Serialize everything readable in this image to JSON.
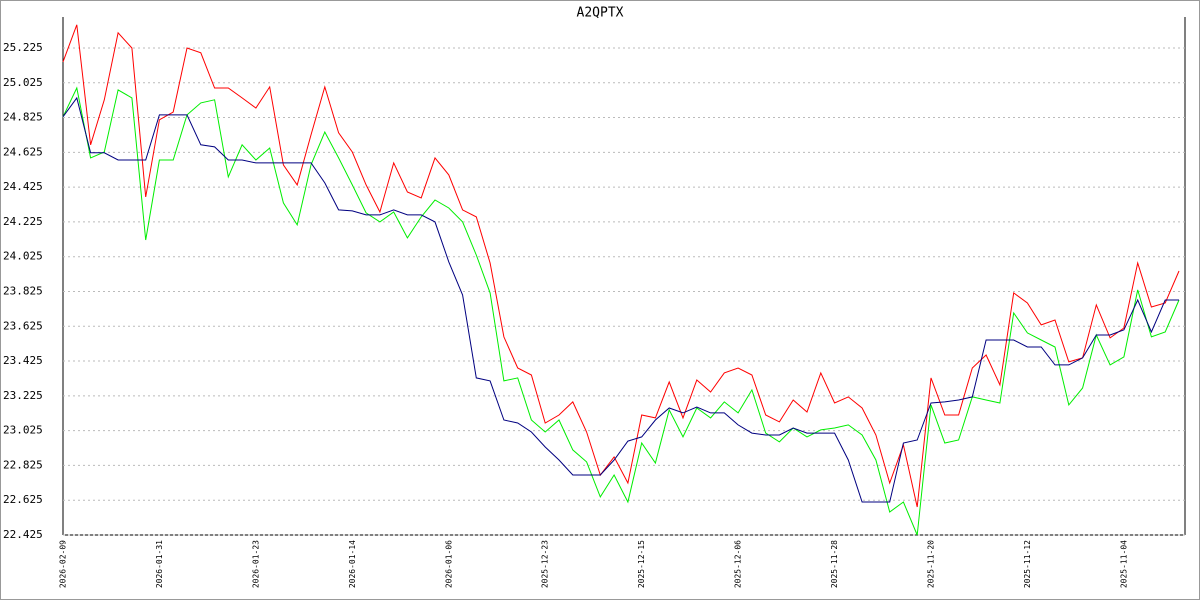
{
  "chart_data": {
    "type": "line",
    "title": "A2QPTX",
    "categories": [
      "2026-02-09",
      null,
      null,
      null,
      null,
      null,
      null,
      "2026-01-31",
      null,
      null,
      null,
      null,
      null,
      null,
      "2026-01-23",
      null,
      null,
      null,
      null,
      null,
      null,
      "2026-01-14",
      null,
      null,
      null,
      null,
      null,
      null,
      "2026-01-06",
      null,
      null,
      null,
      null,
      null,
      null,
      "2025-12-23",
      null,
      null,
      null,
      null,
      null,
      null,
      "2025-12-15",
      null,
      null,
      null,
      null,
      null,
      null,
      "2025-12-06",
      null,
      null,
      null,
      null,
      null,
      null,
      "2025-11-28",
      null,
      null,
      null,
      null,
      null,
      null,
      "2025-11-20",
      null,
      null,
      null,
      null,
      null,
      null,
      "2025-11-12",
      null,
      null,
      null,
      null,
      null,
      null,
      "2025-11-04",
      null,
      null,
      null,
      null
    ],
    "series": [
      {
        "color": "#ff0000",
        "values": [
          25.145,
          25.358,
          24.668,
          24.927,
          25.312,
          25.225,
          24.369,
          24.812,
          24.857,
          25.225,
          25.197,
          24.995,
          24.995,
          24.938,
          24.88,
          25.001,
          24.553,
          24.438,
          24.725,
          25.001,
          24.737,
          24.627,
          24.438,
          24.282,
          24.564,
          24.397,
          24.363,
          24.593,
          24.495,
          24.294,
          24.254,
          23.989,
          23.564,
          23.385,
          23.345,
          23.069,
          23.115,
          23.19,
          23.017,
          22.77,
          22.874,
          22.724,
          23.115,
          23.098,
          23.305,
          23.098,
          23.316,
          23.247,
          23.357,
          23.385,
          23.345,
          23.115,
          23.075,
          23.201,
          23.132,
          23.357,
          23.184,
          23.219,
          23.155,
          23.0,
          22.724,
          22.943,
          22.586,
          23.328,
          23.115,
          23.115,
          23.385,
          23.46,
          23.288,
          23.817,
          23.759,
          23.633,
          23.661,
          23.42,
          23.443,
          23.748,
          23.558,
          23.615,
          23.989,
          23.736,
          23.759,
          23.943
        ]
      },
      {
        "color": "#00ee00",
        "values": [
          24.829,
          24.995,
          24.593,
          24.627,
          24.984,
          24.938,
          24.121,
          24.581,
          24.581,
          24.84,
          24.909,
          24.927,
          24.484,
          24.668,
          24.581,
          24.65,
          24.334,
          24.208,
          24.553,
          24.742,
          24.593,
          24.438,
          24.277,
          24.225,
          24.282,
          24.133,
          24.254,
          24.351,
          24.305,
          24.225,
          24.035,
          23.817,
          23.311,
          23.328,
          23.086,
          23.017,
          23.086,
          22.914,
          22.845,
          22.644,
          22.77,
          22.615,
          22.954,
          22.839,
          23.144,
          22.989,
          23.155,
          23.098,
          23.19,
          23.127,
          23.259,
          23.011,
          22.96,
          23.04,
          22.989,
          23.029,
          23.04,
          23.058,
          23.0,
          22.856,
          22.557,
          22.615,
          22.425,
          23.173,
          22.954,
          22.971,
          23.219,
          23.201,
          23.184,
          23.702,
          23.587,
          23.546,
          23.506,
          23.173,
          23.27,
          23.575,
          23.403,
          23.449,
          23.834,
          23.564,
          23.592,
          23.776
        ]
      },
      {
        "color": "#000080",
        "values": [
          24.829,
          24.938,
          24.622,
          24.622,
          24.581,
          24.581,
          24.581,
          24.84,
          24.84,
          24.84,
          24.668,
          24.656,
          24.581,
          24.581,
          24.564,
          24.564,
          24.564,
          24.564,
          24.564,
          24.449,
          24.294,
          24.288,
          24.265,
          24.265,
          24.294,
          24.265,
          24.265,
          24.225,
          23.995,
          23.805,
          23.328,
          23.311,
          23.086,
          23.069,
          23.017,
          22.931,
          22.856,
          22.77,
          22.77,
          22.77,
          22.856,
          22.965,
          22.989,
          23.086,
          23.155,
          23.127,
          23.161,
          23.127,
          23.127,
          23.058,
          23.011,
          23.0,
          23.0,
          23.04,
          23.011,
          23.011,
          23.011,
          22.856,
          22.615,
          22.615,
          22.615,
          22.954,
          22.971,
          23.184,
          23.19,
          23.201,
          23.219,
          23.546,
          23.546,
          23.546,
          23.506,
          23.506,
          23.403,
          23.403,
          23.443,
          23.575,
          23.575,
          23.604,
          23.776,
          23.592,
          23.776,
          23.776
        ]
      }
    ],
    "ylim": [
      22.425,
      25.403
    ],
    "yticks": [
      22.425,
      22.625,
      22.825,
      23.025,
      23.225,
      23.425,
      23.625,
      23.825,
      24.025,
      24.225,
      24.425,
      24.625,
      24.825,
      25.025,
      25.225
    ],
    "grid": true
  }
}
